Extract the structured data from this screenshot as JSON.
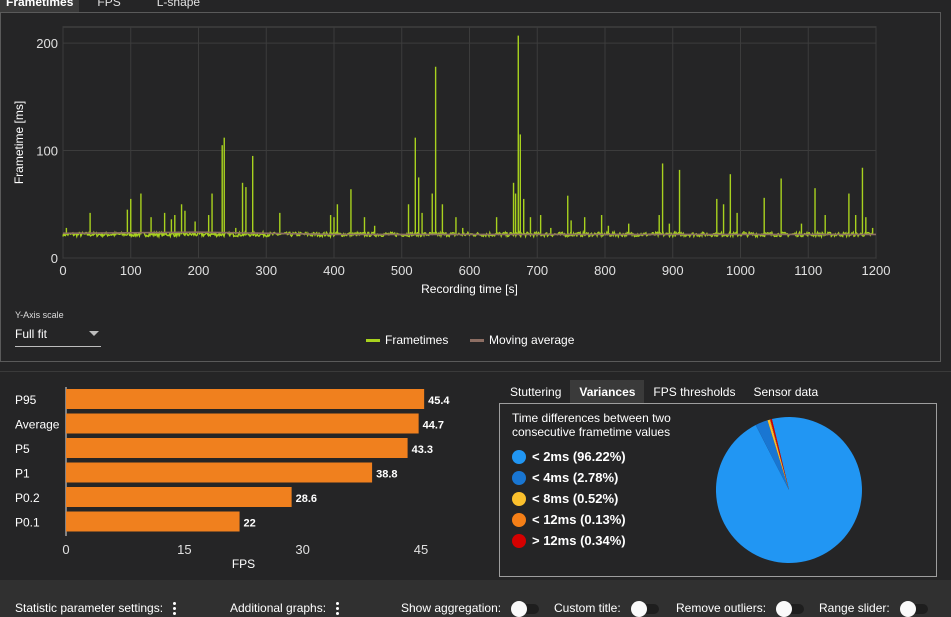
{
  "top_tabs": [
    {
      "label": "Frametimes",
      "active": true
    },
    {
      "label": "FPS",
      "active": false
    },
    {
      "label": "L-shape",
      "active": false
    }
  ],
  "frametime_chart": {
    "chart_data": {
      "type": "line",
      "title": "",
      "xlabel": "Recording time [s]",
      "ylabel": "Frametime [ms]",
      "xlim": [
        0,
        1200
      ],
      "ylim": [
        0,
        215
      ],
      "x_ticks": [
        0,
        100,
        200,
        300,
        400,
        500,
        600,
        700,
        800,
        900,
        1000,
        1100,
        1200
      ],
      "y_ticks": [
        0,
        100,
        200
      ],
      "grid": true,
      "series": [
        {
          "name": "Frametimes",
          "color": "#a8d21e",
          "baseline": 22,
          "spikes": [
            [
              5,
              28
            ],
            [
              40,
              42
            ],
            [
              95,
              45
            ],
            [
              100,
              55
            ],
            [
              115,
              60
            ],
            [
              130,
              38
            ],
            [
              150,
              42
            ],
            [
              160,
              36
            ],
            [
              165,
              40
            ],
            [
              175,
              50
            ],
            [
              180,
              44
            ],
            [
              195,
              34
            ],
            [
              215,
              40
            ],
            [
              220,
              60
            ],
            [
              235,
              105
            ],
            [
              238,
              112
            ],
            [
              255,
              28
            ],
            [
              265,
              70
            ],
            [
              270,
              66
            ],
            [
              280,
              95
            ],
            [
              320,
              42
            ],
            [
              395,
              40
            ],
            [
              400,
              38
            ],
            [
              405,
              50
            ],
            [
              425,
              64
            ],
            [
              445,
              38
            ],
            [
              460,
              30
            ],
            [
              510,
              50
            ],
            [
              520,
              112
            ],
            [
              525,
              75
            ],
            [
              530,
              42
            ],
            [
              545,
              60
            ],
            [
              550,
              178
            ],
            [
              560,
              50
            ],
            [
              580,
              38
            ],
            [
              590,
              28
            ],
            [
              640,
              38
            ],
            [
              665,
              70
            ],
            [
              668,
              60
            ],
            [
              672,
              207
            ],
            [
              675,
              115
            ],
            [
              680,
              55
            ],
            [
              690,
              38
            ],
            [
              705,
              40
            ],
            [
              720,
              28
            ],
            [
              745,
              58
            ],
            [
              750,
              35
            ],
            [
              770,
              38
            ],
            [
              795,
              40
            ],
            [
              805,
              30
            ],
            [
              835,
              32
            ],
            [
              880,
              40
            ],
            [
              885,
              88
            ],
            [
              895,
              32
            ],
            [
              910,
              82
            ],
            [
              965,
              55
            ],
            [
              975,
              50
            ],
            [
              985,
              78
            ],
            [
              995,
              42
            ],
            [
              1005,
              25
            ],
            [
              1035,
              56
            ],
            [
              1060,
              74
            ],
            [
              1090,
              32
            ],
            [
              1110,
              65
            ],
            [
              1125,
              40
            ],
            [
              1160,
              60
            ],
            [
              1170,
              40
            ],
            [
              1180,
              84
            ],
            [
              1185,
              38
            ],
            [
              1195,
              28
            ]
          ]
        },
        {
          "name": "Moving average",
          "color": "#8d6e63",
          "values": [
            [
              0,
              23
            ],
            [
              200,
              24
            ],
            [
              400,
              22
            ],
            [
              600,
              22
            ],
            [
              800,
              22
            ],
            [
              1000,
              22
            ],
            [
              1200,
              22
            ]
          ]
        }
      ],
      "legend": "bottom-center"
    },
    "yaxis_scale_label": "Y-Axis scale",
    "yaxis_scale_value": "Full fit"
  },
  "fps_stats": {
    "chart_data": {
      "type": "bar",
      "orientation": "horizontal",
      "categories": [
        "P95",
        "Average",
        "P5",
        "P1",
        "P0.2",
        "P0.1"
      ],
      "values": [
        45.4,
        44.7,
        43.3,
        38.8,
        28.6,
        22
      ],
      "value_labels": [
        "45.4",
        "44.7",
        "43.3",
        "38.8",
        "28.6",
        "22"
      ],
      "xlabel": "FPS",
      "xlim": [
        0,
        45
      ],
      "x_ticks": [
        "0",
        "15",
        "30",
        "45"
      ],
      "bar_color": "#f0801e"
    }
  },
  "right_tabs": [
    {
      "label": "Stuttering",
      "active": false
    },
    {
      "label": "Variances",
      "active": true
    },
    {
      "label": "FPS thresholds",
      "active": false
    },
    {
      "label": "Sensor data",
      "active": false
    }
  ],
  "variances": {
    "title": "Time differences between two consecutive frametime values",
    "chart_data": {
      "type": "pie",
      "categories": [
        "< 2ms (96.22%)",
        "< 4ms (2.78%)",
        "< 8ms (0.52%)",
        "< 12ms (0.13%)",
        "> 12ms (0.34%)"
      ],
      "values": [
        96.22,
        2.78,
        0.52,
        0.13,
        0.34
      ],
      "colors": [
        "#2196f3",
        "#1976d2",
        "#fbc02d",
        "#f57f17",
        "#d50000"
      ]
    }
  },
  "bottom_settings": {
    "statistic_parameter_settings": "Statistic parameter settings:",
    "additional_graphs": "Additional graphs:",
    "show_aggregation": "Show aggregation:",
    "custom_title": "Custom title:",
    "remove_outliers": "Remove outliers:",
    "range_slider": "Range slider:"
  }
}
